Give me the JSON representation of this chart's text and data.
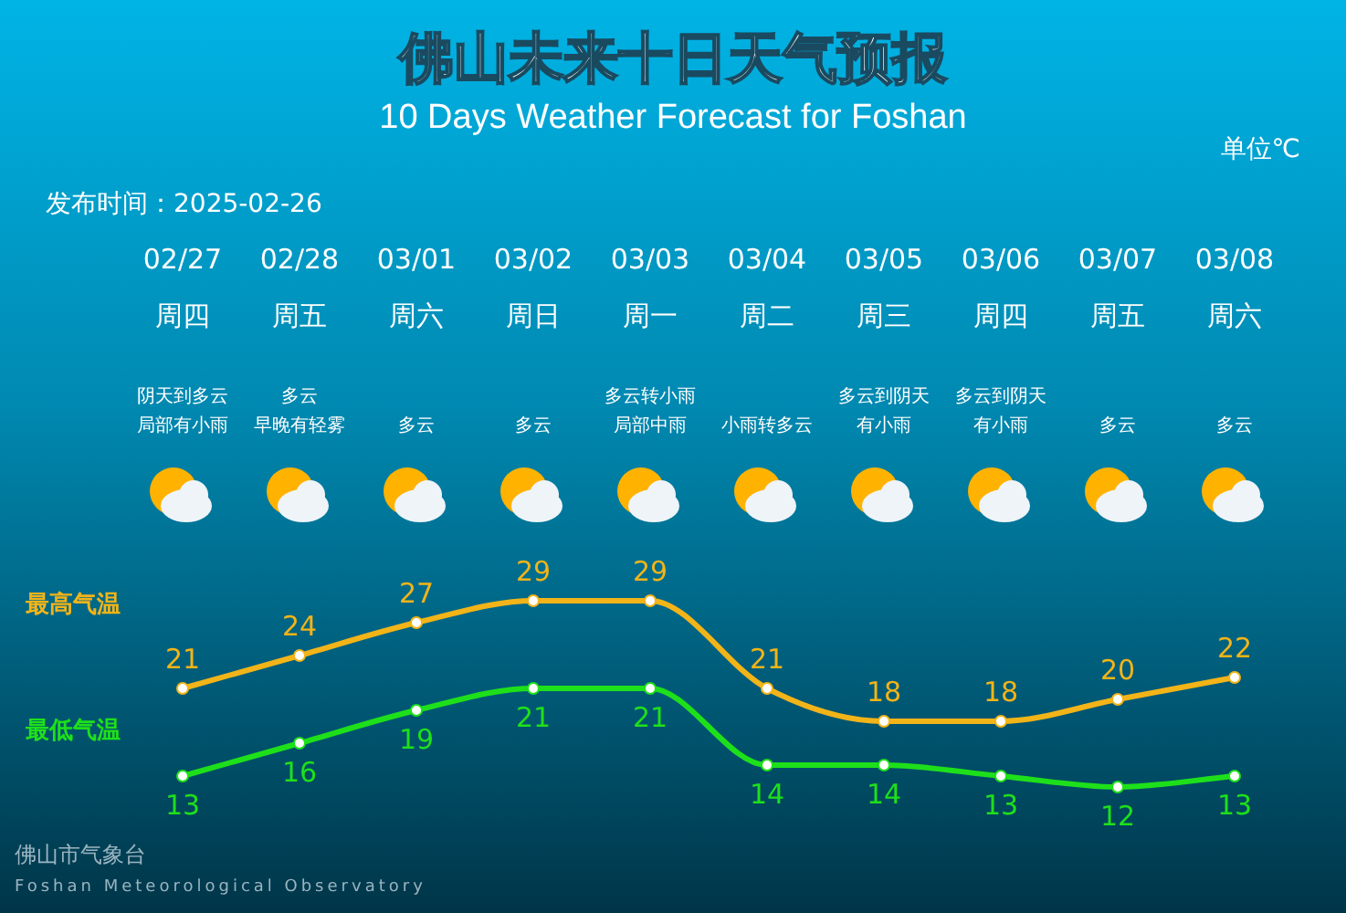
{
  "chart_data": {
    "type": "line",
    "title": "佛山未来十日天气预报",
    "subtitle": "10 Days Weather Forecast for Foshan",
    "categories": [
      "02/27",
      "02/28",
      "03/01",
      "03/02",
      "03/03",
      "03/04",
      "03/05",
      "03/06",
      "03/07",
      "03/08"
    ],
    "series": [
      {
        "name": "最高气温",
        "color": "#f2b418",
        "values": [
          21,
          24,
          27,
          29,
          29,
          21,
          18,
          18,
          20,
          22
        ]
      },
      {
        "name": "最低气温",
        "color": "#1ee01a",
        "values": [
          13,
          16,
          19,
          21,
          21,
          14,
          14,
          13,
          12,
          13
        ]
      }
    ],
    "data_labels": true,
    "marker": "circle",
    "line_style": "solid",
    "legend": false,
    "grid": false,
    "annotations": [
      "发布时间：2025-02-26",
      "单位℃",
      "佛山市气象台",
      "Foshan Meteorological Observatory",
      "周四",
      "阴天到多云",
      "局部有小雨",
      "周五",
      "多云",
      "早晚有轻雾",
      "周六",
      "多云",
      "周日",
      "多云",
      "周一",
      "多云转小雨",
      "局部中雨",
      "周二",
      "小雨转多云",
      "周三",
      "多云到阴天",
      "有小雨",
      "周四",
      "多云到阴天",
      "有小雨",
      "周五",
      "多云",
      "周六",
      "多云"
    ]
  }
}
